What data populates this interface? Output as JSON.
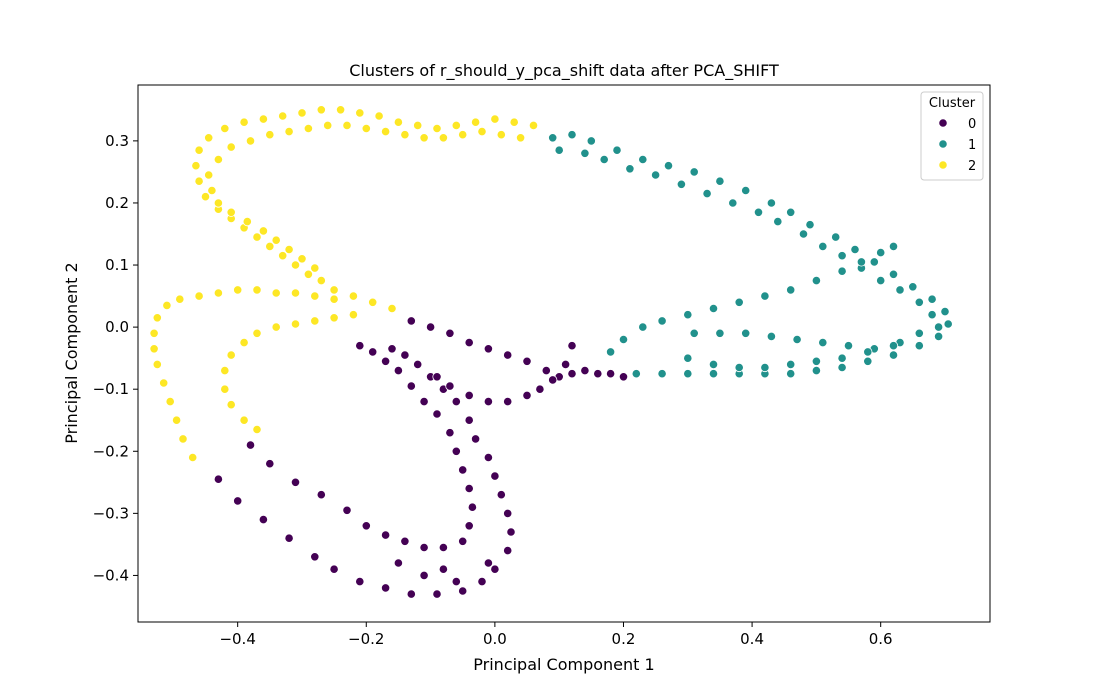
{
  "chart_data": {
    "type": "scatter",
    "title": "Clusters of r_should_y_pca_shift data after PCA_SHIFT",
    "xlabel": "Principal Component 1",
    "ylabel": "Principal Component 2",
    "xlim": [
      -0.555,
      0.77
    ],
    "ylim": [
      -0.475,
      0.39
    ],
    "xticks": [
      "−0.4",
      "−0.2",
      "0.0",
      "0.2",
      "0.4",
      "0.6"
    ],
    "xtick_values": [
      -0.4,
      -0.2,
      0.0,
      0.2,
      0.4,
      0.6
    ],
    "yticks": [
      "−0.4",
      "−0.3",
      "−0.2",
      "−0.1",
      "0.0",
      "0.1",
      "0.2",
      "0.3"
    ],
    "ytick_values": [
      -0.4,
      -0.3,
      -0.2,
      -0.1,
      0.0,
      0.1,
      0.2,
      0.3
    ],
    "grid": false,
    "legend": {
      "title": "Cluster",
      "placement": "top-right"
    },
    "series": [
      {
        "name": "0",
        "color": "#440154",
        "points": [
          [
            -0.43,
            -0.245
          ],
          [
            -0.4,
            -0.28
          ],
          [
            -0.36,
            -0.31
          ],
          [
            -0.32,
            -0.34
          ],
          [
            -0.28,
            -0.37
          ],
          [
            -0.25,
            -0.39
          ],
          [
            -0.21,
            -0.41
          ],
          [
            -0.17,
            -0.42
          ],
          [
            -0.13,
            -0.43
          ],
          [
            -0.09,
            -0.43
          ],
          [
            -0.05,
            -0.425
          ],
          [
            -0.02,
            -0.41
          ],
          [
            0.0,
            -0.39
          ],
          [
            0.02,
            -0.36
          ],
          [
            0.025,
            -0.33
          ],
          [
            0.02,
            -0.3
          ],
          [
            0.01,
            -0.27
          ],
          [
            0.0,
            -0.24
          ],
          [
            -0.01,
            -0.21
          ],
          [
            -0.03,
            -0.18
          ],
          [
            -0.04,
            -0.15
          ],
          [
            -0.06,
            -0.12
          ],
          [
            -0.08,
            -0.1
          ],
          [
            -0.1,
            -0.08
          ],
          [
            -0.12,
            -0.06
          ],
          [
            -0.14,
            -0.045
          ],
          [
            -0.16,
            -0.035
          ],
          [
            -0.38,
            -0.19
          ],
          [
            -0.35,
            -0.22
          ],
          [
            -0.31,
            -0.25
          ],
          [
            -0.27,
            -0.27
          ],
          [
            -0.23,
            -0.295
          ],
          [
            -0.2,
            -0.32
          ],
          [
            -0.17,
            -0.335
          ],
          [
            -0.14,
            -0.345
          ],
          [
            -0.11,
            -0.355
          ],
          [
            -0.08,
            -0.355
          ],
          [
            -0.05,
            -0.345
          ],
          [
            -0.04,
            -0.32
          ],
          [
            -0.035,
            -0.29
          ],
          [
            -0.04,
            -0.26
          ],
          [
            -0.05,
            -0.23
          ],
          [
            -0.06,
            -0.2
          ],
          [
            -0.07,
            -0.17
          ],
          [
            -0.09,
            -0.14
          ],
          [
            -0.11,
            -0.12
          ],
          [
            -0.13,
            -0.095
          ],
          [
            -0.15,
            -0.07
          ],
          [
            -0.17,
            -0.055
          ],
          [
            -0.19,
            -0.04
          ],
          [
            -0.21,
            -0.03
          ],
          [
            -0.13,
            0.01
          ],
          [
            -0.1,
            0.0
          ],
          [
            -0.07,
            -0.01
          ],
          [
            -0.04,
            -0.025
          ],
          [
            -0.01,
            -0.035
          ],
          [
            0.02,
            -0.045
          ],
          [
            0.05,
            -0.055
          ],
          [
            0.08,
            -0.07
          ],
          [
            0.1,
            -0.08
          ],
          [
            0.12,
            -0.075
          ],
          [
            0.14,
            -0.07
          ],
          [
            0.16,
            -0.075
          ],
          [
            0.18,
            -0.075
          ],
          [
            0.2,
            -0.08
          ],
          [
            0.12,
            -0.03
          ],
          [
            0.11,
            -0.06
          ],
          [
            0.09,
            -0.085
          ],
          [
            0.07,
            -0.1
          ],
          [
            0.05,
            -0.11
          ],
          [
            0.02,
            -0.12
          ],
          [
            -0.01,
            -0.12
          ],
          [
            -0.04,
            -0.11
          ],
          [
            -0.07,
            -0.095
          ],
          [
            -0.09,
            -0.08
          ],
          [
            -0.01,
            -0.38
          ],
          [
            -0.08,
            -0.39
          ],
          [
            -0.15,
            -0.38
          ],
          [
            -0.11,
            -0.4
          ],
          [
            -0.06,
            -0.41
          ]
        ]
      },
      {
        "name": "1",
        "color": "#21918c",
        "points": [
          [
            0.09,
            0.305
          ],
          [
            0.12,
            0.31
          ],
          [
            0.15,
            0.3
          ],
          [
            0.19,
            0.285
          ],
          [
            0.23,
            0.27
          ],
          [
            0.27,
            0.26
          ],
          [
            0.31,
            0.25
          ],
          [
            0.35,
            0.235
          ],
          [
            0.39,
            0.22
          ],
          [
            0.43,
            0.2
          ],
          [
            0.46,
            0.185
          ],
          [
            0.49,
            0.165
          ],
          [
            0.53,
            0.145
          ],
          [
            0.56,
            0.125
          ],
          [
            0.59,
            0.105
          ],
          [
            0.62,
            0.085
          ],
          [
            0.65,
            0.065
          ],
          [
            0.68,
            0.045
          ],
          [
            0.7,
            0.025
          ],
          [
            0.705,
            0.005
          ],
          [
            0.69,
            -0.015
          ],
          [
            0.66,
            -0.03
          ],
          [
            0.62,
            -0.045
          ],
          [
            0.58,
            -0.055
          ],
          [
            0.54,
            -0.065
          ],
          [
            0.5,
            -0.07
          ],
          [
            0.46,
            -0.075
          ],
          [
            0.42,
            -0.075
          ],
          [
            0.38,
            -0.075
          ],
          [
            0.34,
            -0.075
          ],
          [
            0.3,
            -0.075
          ],
          [
            0.26,
            -0.075
          ],
          [
            0.22,
            -0.075
          ],
          [
            0.1,
            0.285
          ],
          [
            0.14,
            0.28
          ],
          [
            0.17,
            0.27
          ],
          [
            0.21,
            0.255
          ],
          [
            0.25,
            0.245
          ],
          [
            0.29,
            0.23
          ],
          [
            0.33,
            0.215
          ],
          [
            0.37,
            0.2
          ],
          [
            0.41,
            0.185
          ],
          [
            0.44,
            0.17
          ],
          [
            0.48,
            0.15
          ],
          [
            0.51,
            0.13
          ],
          [
            0.54,
            0.115
          ],
          [
            0.57,
            0.095
          ],
          [
            0.6,
            0.075
          ],
          [
            0.63,
            0.06
          ],
          [
            0.66,
            0.04
          ],
          [
            0.68,
            0.02
          ],
          [
            0.69,
            0.0
          ],
          [
            0.62,
            0.13
          ],
          [
            0.6,
            0.12
          ],
          [
            0.57,
            0.105
          ],
          [
            0.54,
            0.09
          ],
          [
            0.5,
            0.075
          ],
          [
            0.46,
            0.06
          ],
          [
            0.42,
            0.05
          ],
          [
            0.38,
            0.04
          ],
          [
            0.34,
            0.03
          ],
          [
            0.3,
            0.02
          ],
          [
            0.26,
            0.01
          ],
          [
            0.23,
            0.0
          ],
          [
            0.2,
            -0.02
          ],
          [
            0.18,
            -0.04
          ],
          [
            0.31,
            -0.01
          ],
          [
            0.35,
            -0.01
          ],
          [
            0.39,
            -0.01
          ],
          [
            0.43,
            -0.015
          ],
          [
            0.47,
            -0.02
          ],
          [
            0.51,
            -0.025
          ],
          [
            0.55,
            -0.03
          ],
          [
            0.59,
            -0.035
          ],
          [
            0.63,
            -0.025
          ],
          [
            0.66,
            -0.01
          ],
          [
            0.3,
            -0.05
          ],
          [
            0.34,
            -0.06
          ],
          [
            0.38,
            -0.065
          ],
          [
            0.42,
            -0.065
          ],
          [
            0.46,
            -0.06
          ],
          [
            0.5,
            -0.055
          ],
          [
            0.54,
            -0.05
          ],
          [
            0.58,
            -0.04
          ],
          [
            0.62,
            -0.03
          ]
        ]
      },
      {
        "name": "2",
        "color": "#fde725",
        "points": [
          [
            0.06,
            0.325
          ],
          [
            0.03,
            0.33
          ],
          [
            0.0,
            0.335
          ],
          [
            -0.03,
            0.33
          ],
          [
            -0.06,
            0.325
          ],
          [
            -0.09,
            0.32
          ],
          [
            -0.12,
            0.325
          ],
          [
            -0.15,
            0.33
          ],
          [
            -0.18,
            0.34
          ],
          [
            -0.21,
            0.345
          ],
          [
            -0.24,
            0.35
          ],
          [
            -0.27,
            0.35
          ],
          [
            -0.3,
            0.345
          ],
          [
            -0.33,
            0.34
          ],
          [
            -0.36,
            0.335
          ],
          [
            -0.39,
            0.33
          ],
          [
            -0.42,
            0.32
          ],
          [
            -0.445,
            0.305
          ],
          [
            -0.46,
            0.285
          ],
          [
            -0.465,
            0.26
          ],
          [
            -0.46,
            0.235
          ],
          [
            -0.45,
            0.21
          ],
          [
            -0.43,
            0.19
          ],
          [
            -0.41,
            0.175
          ],
          [
            -0.39,
            0.16
          ],
          [
            -0.37,
            0.145
          ],
          [
            -0.35,
            0.13
          ],
          [
            -0.33,
            0.115
          ],
          [
            -0.31,
            0.1
          ],
          [
            -0.29,
            0.085
          ],
          [
            -0.27,
            0.075
          ],
          [
            -0.25,
            0.06
          ],
          [
            -0.22,
            0.05
          ],
          [
            -0.19,
            0.04
          ],
          [
            -0.16,
            0.03
          ],
          [
            0.04,
            0.305
          ],
          [
            0.01,
            0.31
          ],
          [
            -0.02,
            0.315
          ],
          [
            -0.05,
            0.31
          ],
          [
            -0.08,
            0.305
          ],
          [
            -0.11,
            0.305
          ],
          [
            -0.14,
            0.31
          ],
          [
            -0.17,
            0.315
          ],
          [
            -0.2,
            0.32
          ],
          [
            -0.23,
            0.325
          ],
          [
            -0.26,
            0.325
          ],
          [
            -0.29,
            0.32
          ],
          [
            -0.32,
            0.315
          ],
          [
            -0.35,
            0.31
          ],
          [
            -0.38,
            0.3
          ],
          [
            -0.41,
            0.29
          ],
          [
            -0.43,
            0.27
          ],
          [
            -0.445,
            0.245
          ],
          [
            -0.44,
            0.22
          ],
          [
            -0.43,
            0.2
          ],
          [
            -0.41,
            0.185
          ],
          [
            -0.385,
            0.17
          ],
          [
            -0.36,
            0.155
          ],
          [
            -0.34,
            0.14
          ],
          [
            -0.32,
            0.125
          ],
          [
            -0.3,
            0.11
          ],
          [
            -0.28,
            0.095
          ],
          [
            -0.25,
            0.045
          ],
          [
            -0.28,
            0.05
          ],
          [
            -0.31,
            0.055
          ],
          [
            -0.34,
            0.055
          ],
          [
            -0.37,
            0.06
          ],
          [
            -0.4,
            0.06
          ],
          [
            -0.43,
            0.055
          ],
          [
            -0.46,
            0.05
          ],
          [
            -0.49,
            0.045
          ],
          [
            -0.51,
            0.035
          ],
          [
            -0.525,
            0.015
          ],
          [
            -0.53,
            -0.01
          ],
          [
            -0.53,
            -0.035
          ],
          [
            -0.525,
            -0.06
          ],
          [
            -0.515,
            -0.09
          ],
          [
            -0.505,
            -0.12
          ],
          [
            -0.495,
            -0.15
          ],
          [
            -0.485,
            -0.18
          ],
          [
            -0.47,
            -0.21
          ],
          [
            -0.22,
            0.02
          ],
          [
            -0.25,
            0.015
          ],
          [
            -0.28,
            0.01
          ],
          [
            -0.31,
            0.005
          ],
          [
            -0.34,
            0.0
          ],
          [
            -0.37,
            -0.01
          ],
          [
            -0.39,
            -0.025
          ],
          [
            -0.41,
            -0.045
          ],
          [
            -0.42,
            -0.07
          ],
          [
            -0.42,
            -0.1
          ],
          [
            -0.41,
            -0.125
          ],
          [
            -0.39,
            -0.15
          ],
          [
            -0.37,
            -0.165
          ]
        ]
      }
    ]
  }
}
